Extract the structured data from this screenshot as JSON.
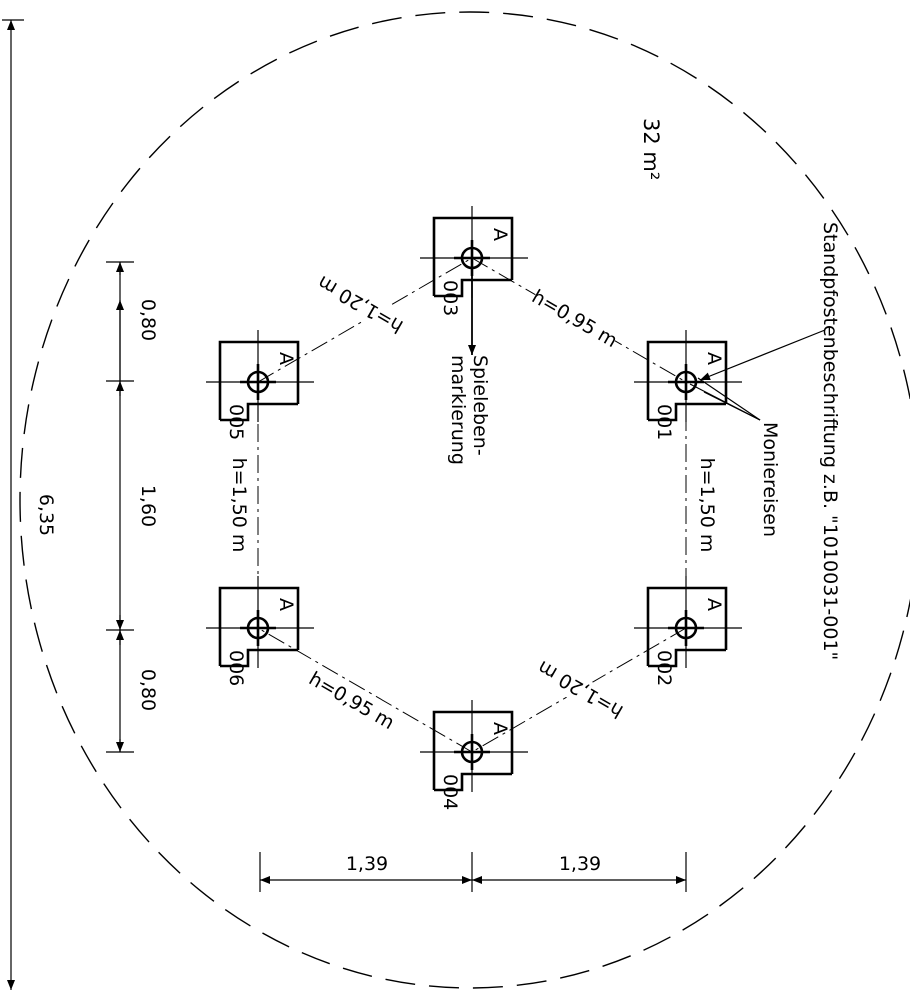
{
  "area": "32 m²",
  "posts": [
    {
      "id": "001",
      "letter": "A"
    },
    {
      "id": "002",
      "letter": "A"
    },
    {
      "id": "003",
      "letter": "A"
    },
    {
      "id": "004",
      "letter": "A"
    },
    {
      "id": "005",
      "letter": "A"
    },
    {
      "id": "006",
      "letter": "A"
    }
  ],
  "edges": {
    "e003_001": "h=0,95 m",
    "e001_002": "h=1,50 m",
    "e002_004": "h=1,20 m",
    "e004_006": "h=0,95 m",
    "e006_005": "h=1,50 m",
    "e005_003": "h=1,20 m"
  },
  "dimensions": {
    "total": "6,35",
    "seg_top": "0,80",
    "seg_mid": "1,60",
    "seg_bottom": "0,80",
    "horiz_left": "1,39",
    "horiz_right": "1,39"
  },
  "annotations": {
    "play_level_1": "Spieleben-",
    "play_level_2": "markierung",
    "rebar": "Moniereisen",
    "post_label": "Standpfostenbeschriftung z.B. \"1010031-001\""
  }
}
